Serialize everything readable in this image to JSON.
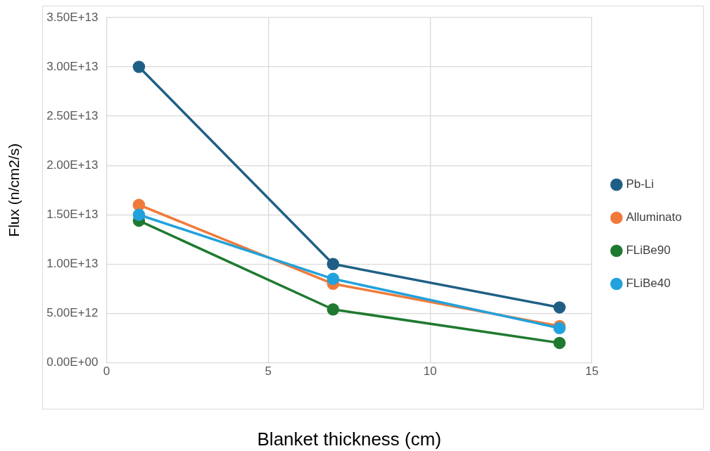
{
  "chart_data": {
    "type": "line",
    "xlabel": "Blanket thickness (cm)",
    "ylabel": "Flux (n/cm2/s)",
    "x": [
      1,
      7,
      14
    ],
    "series": [
      {
        "name": "Pb-Li",
        "color": "#1f5f85",
        "values": [
          30000000000000.0,
          10000000000000.0,
          5600000000000.0
        ]
      },
      {
        "name": "Alluminato",
        "color": "#f07a3a",
        "values": [
          16000000000000.0,
          8000000000000.0,
          3700000000000.0
        ]
      },
      {
        "name": "FLiBe90",
        "color": "#1f7a30",
        "values": [
          14400000000000.0,
          5400000000000.0,
          2000000000000.0
        ]
      },
      {
        "name": "FLiBe40",
        "color": "#22a2dc",
        "values": [
          15000000000000.0,
          8500000000000.0,
          3500000000000.0
        ]
      }
    ],
    "xlim": [
      0,
      15
    ],
    "xticks": [
      0,
      5,
      10,
      15
    ],
    "ylim": [
      0,
      35000000000000.0
    ],
    "yticks": [
      {
        "value": 0,
        "label": "0.00E+00"
      },
      {
        "value": 5000000000000.0,
        "label": "5.00E+12"
      },
      {
        "value": 10000000000000.0,
        "label": "1.00E+13"
      },
      {
        "value": 15000000000000.0,
        "label": "1.50E+13"
      },
      {
        "value": 20000000000000.0,
        "label": "2.00E+13"
      },
      {
        "value": 25000000000000.0,
        "label": "2.50E+13"
      },
      {
        "value": 30000000000000.0,
        "label": "3.00E+13"
      },
      {
        "value": 35000000000000.0,
        "label": "3.50E+13"
      }
    ],
    "grid": true,
    "legend": "right",
    "marker": "circle",
    "line_style": "solid"
  }
}
